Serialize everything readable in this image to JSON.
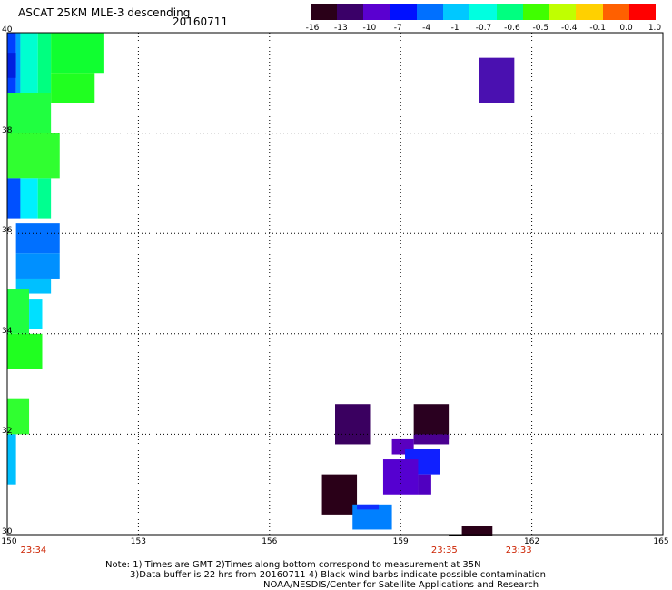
{
  "header": {
    "title": "ASCAT 25KM MLE-3 descending",
    "date": "20160711"
  },
  "colorbar": {
    "labels": [
      "-16",
      "-13",
      "-10",
      "-7",
      "-4",
      "-1",
      "-0.7",
      "-0.6",
      "-0.5",
      "-0.4",
      "-0.1",
      "0.0",
      "1.0"
    ],
    "colors": [
      "#2a0018",
      "#3a0068",
      "#5a00d0",
      "#0010ff",
      "#0070ff",
      "#00c8ff",
      "#00ffe0",
      "#00ff80",
      "#40ff00",
      "#c0ff00",
      "#ffd000",
      "#ff6000",
      "#ff0000"
    ]
  },
  "axes": {
    "x_ticks": [
      "150",
      "153",
      "156",
      "159",
      "162",
      "165"
    ],
    "y_ticks": [
      "40",
      "38",
      "36",
      "34",
      "32",
      "30"
    ],
    "time_labels": [
      {
        "label": "23:34",
        "lon": 150.6
      },
      {
        "label": "23:35",
        "lon": 160.0
      },
      {
        "label": "23:33",
        "lon": 161.7
      }
    ]
  },
  "notes": [
    "Note: 1) Times are GMT 2)Times along bottom correspond to measurement at 35N",
    "3)Data buffer is 22 hrs from 20160711 4) Black wind barbs indicate possible contamination",
    "NOAA/NESDIS/Center for Satellite Applications and Research"
  ],
  "chart_data": {
    "type": "heatmap",
    "title": "ASCAT 25KM MLE-3 descending",
    "xlim": [
      150,
      165
    ],
    "ylim": [
      30,
      40
    ],
    "grid": true,
    "value_scale": [
      "-16",
      "-13",
      "-10",
      "-7",
      "-4",
      "-1",
      "-0.7",
      "-0.6",
      "-0.5",
      "-0.4",
      "-0.1",
      "0.0",
      "1.0"
    ],
    "cells": [
      {
        "lon0": 150.0,
        "lon1": 150.2,
        "lat0": 38.8,
        "lat1": 40.0,
        "color": "#0040ff"
      },
      {
        "lon0": 150.2,
        "lon1": 150.3,
        "lat0": 38.8,
        "lat1": 40.0,
        "color": "#00a0ff"
      },
      {
        "lon0": 150.3,
        "lon1": 150.7,
        "lat0": 38.8,
        "lat1": 40.0,
        "color": "#00ffd0"
      },
      {
        "lon0": 150.7,
        "lon1": 151.0,
        "lat0": 38.8,
        "lat1": 40.0,
        "color": "#00ff80"
      },
      {
        "lon0": 151.0,
        "lon1": 152.2,
        "lat0": 39.2,
        "lat1": 40.0,
        "color": "#10ff30"
      },
      {
        "lon0": 151.0,
        "lon1": 152.0,
        "lat0": 38.6,
        "lat1": 39.2,
        "color": "#20ff20"
      },
      {
        "lon0": 150.0,
        "lon1": 150.2,
        "lat0": 39.1,
        "lat1": 39.6,
        "color": "#0020e0"
      },
      {
        "lon0": 150.0,
        "lon1": 151.0,
        "lat0": 38.0,
        "lat1": 38.8,
        "color": "#20ff40"
      },
      {
        "lon0": 150.0,
        "lon1": 151.2,
        "lat0": 37.1,
        "lat1": 38.0,
        "color": "#30ff30"
      },
      {
        "lon0": 150.0,
        "lon1": 150.3,
        "lat0": 36.3,
        "lat1": 37.1,
        "color": "#0050ff"
      },
      {
        "lon0": 150.3,
        "lon1": 150.7,
        "lat0": 36.3,
        "lat1": 37.1,
        "color": "#00f0ff"
      },
      {
        "lon0": 150.7,
        "lon1": 151.0,
        "lat0": 36.3,
        "lat1": 37.1,
        "color": "#00ff90"
      },
      {
        "lon0": 150.2,
        "lon1": 151.2,
        "lat0": 35.6,
        "lat1": 36.2,
        "color": "#0070ff"
      },
      {
        "lon0": 150.2,
        "lon1": 151.2,
        "lat0": 35.1,
        "lat1": 35.6,
        "color": "#0090ff"
      },
      {
        "lon0": 150.2,
        "lon1": 151.0,
        "lat0": 34.8,
        "lat1": 35.1,
        "color": "#00c0ff"
      },
      {
        "lon0": 150.0,
        "lon1": 150.5,
        "lat0": 34.0,
        "lat1": 34.9,
        "color": "#20ff40"
      },
      {
        "lon0": 150.5,
        "lon1": 150.8,
        "lat0": 34.1,
        "lat1": 34.7,
        "color": "#00e0ff"
      },
      {
        "lon0": 150.0,
        "lon1": 150.8,
        "lat0": 33.3,
        "lat1": 34.0,
        "color": "#20ff20"
      },
      {
        "lon0": 150.0,
        "lon1": 150.5,
        "lat0": 32.0,
        "lat1": 32.7,
        "color": "#30ff30"
      },
      {
        "lon0": 150.0,
        "lon1": 150.2,
        "lat0": 31.0,
        "lat1": 32.0,
        "color": "#00c0ff"
      },
      {
        "lon0": 160.8,
        "lon1": 161.6,
        "lat0": 38.6,
        "lat1": 39.5,
        "color": "#4a10b0"
      },
      {
        "lon0": 157.5,
        "lon1": 158.3,
        "lat0": 31.8,
        "lat1": 32.6,
        "color": "#3a0060"
      },
      {
        "lon0": 159.3,
        "lon1": 160.1,
        "lat0": 31.9,
        "lat1": 32.6,
        "color": "#2a0020"
      },
      {
        "lon0": 159.3,
        "lon1": 160.1,
        "lat0": 31.8,
        "lat1": 32.0,
        "color": "#4a0090"
      },
      {
        "lon0": 158.8,
        "lon1": 159.3,
        "lat0": 31.6,
        "lat1": 31.9,
        "color": "#5a00c0"
      },
      {
        "lon0": 159.1,
        "lon1": 159.9,
        "lat0": 31.2,
        "lat1": 31.7,
        "color": "#1020ff"
      },
      {
        "lon0": 158.6,
        "lon1": 159.4,
        "lat0": 30.8,
        "lat1": 31.5,
        "color": "#5500d0"
      },
      {
        "lon0": 159.4,
        "lon1": 159.7,
        "lat0": 30.8,
        "lat1": 31.2,
        "color": "#5000c0"
      },
      {
        "lon0": 157.2,
        "lon1": 158.0,
        "lat0": 30.4,
        "lat1": 31.2,
        "color": "#2a0018"
      },
      {
        "lon0": 157.9,
        "lon1": 158.8,
        "lat0": 30.1,
        "lat1": 30.6,
        "color": "#0080ff"
      },
      {
        "lon0": 158.0,
        "lon1": 158.5,
        "lat0": 30.5,
        "lat1": 30.6,
        "color": "#1030ff"
      },
      {
        "lon0": 160.4,
        "lon1": 161.1,
        "lat0": 29.98,
        "lat1": 30.18,
        "color": "#2a0018"
      },
      {
        "lon0": 160.1,
        "lon1": 160.4,
        "lat0": 29.98,
        "lat1": 30.0,
        "color": "#000000"
      }
    ]
  }
}
